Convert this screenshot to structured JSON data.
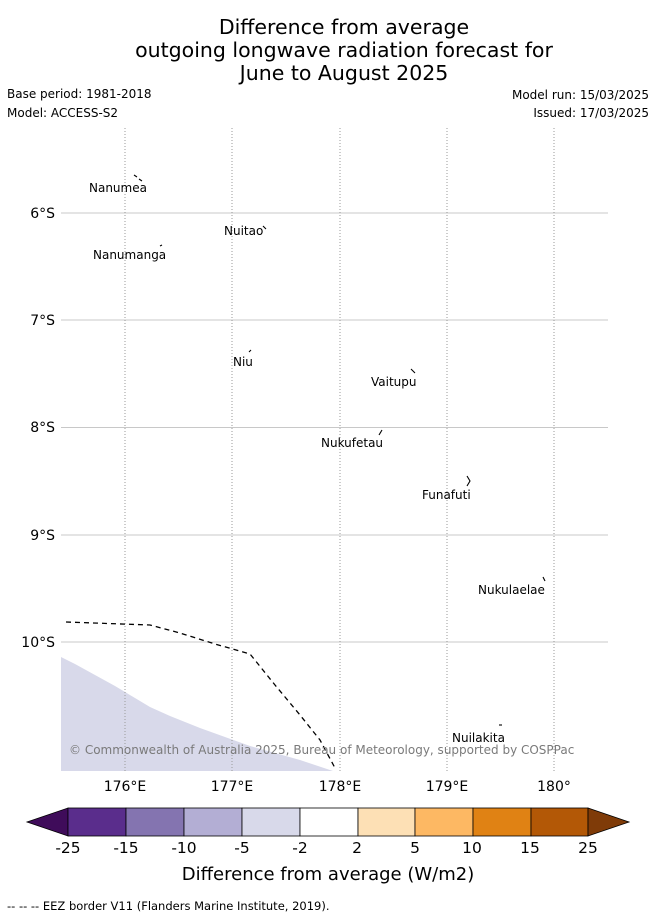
{
  "title": {
    "line1": "Difference from average",
    "line2": "outgoing longwave radiation forecast for",
    "line3": "June to August 2025"
  },
  "meta": {
    "base_period": "Base period: 1981-2018",
    "model": "Model: ACCESS-S2",
    "model_run": "Model run: 15/03/2025",
    "issued": "Issued: 17/03/2025"
  },
  "map": {
    "lon_ticks": [
      "176°E",
      "177°E",
      "178°E",
      "179°E",
      "180°"
    ],
    "lat_ticks": [
      "6°S",
      "7°S",
      "8°S",
      "9°S",
      "10°S"
    ],
    "places": [
      {
        "name": "Nanumea",
        "lon": 176.13,
        "lat": -5.67
      },
      {
        "name": "Nuitao",
        "lon": 177.33,
        "lat": -6.11
      },
      {
        "name": "Nanumanga",
        "lon": 176.32,
        "lat": -6.29
      },
      {
        "name": "Niu",
        "lon": 177.16,
        "lat": -7.29
      },
      {
        "name": "Vaitupu",
        "lon": 178.68,
        "lat": -7.48
      },
      {
        "name": "Nukufetau",
        "lon": 178.38,
        "lat": -8.03
      },
      {
        "name": "Funafuti",
        "lon": 179.2,
        "lat": -8.52
      },
      {
        "name": "Nukulaelae",
        "lon": 179.85,
        "lat": -9.38
      },
      {
        "name": "Nuilakita",
        "lon": 179.51,
        "lat": -10.78
      }
    ],
    "copyright": "© Commonwealth of Australia 2025, Bureau of Meteorology, supported by COSPPac",
    "shaded_anomaly_range": "-5 to -2",
    "colors": {
      "shading": "#d8d9ea",
      "grid": "#c8c8c8",
      "eez": "#000000"
    }
  },
  "colorbar": {
    "ticks": [
      "-25",
      "-15",
      "-10",
      "-5",
      "-2",
      "2",
      "5",
      "10",
      "15",
      "25"
    ],
    "colors": [
      "#3f0c5a",
      "#5a2d8c",
      "#8474b0",
      "#b3aed4",
      "#d8d9ea",
      "#ffffff",
      "#fde0b5",
      "#fdb863",
      "#e08214",
      "#b35806",
      "#7f3b08"
    ],
    "label": "Difference from average (W/m2)"
  },
  "footer": {
    "eez_line_symbol": "-- -- --",
    "eez_text": "EEZ border V11 (Flanders Marine Institute, 2019)."
  }
}
